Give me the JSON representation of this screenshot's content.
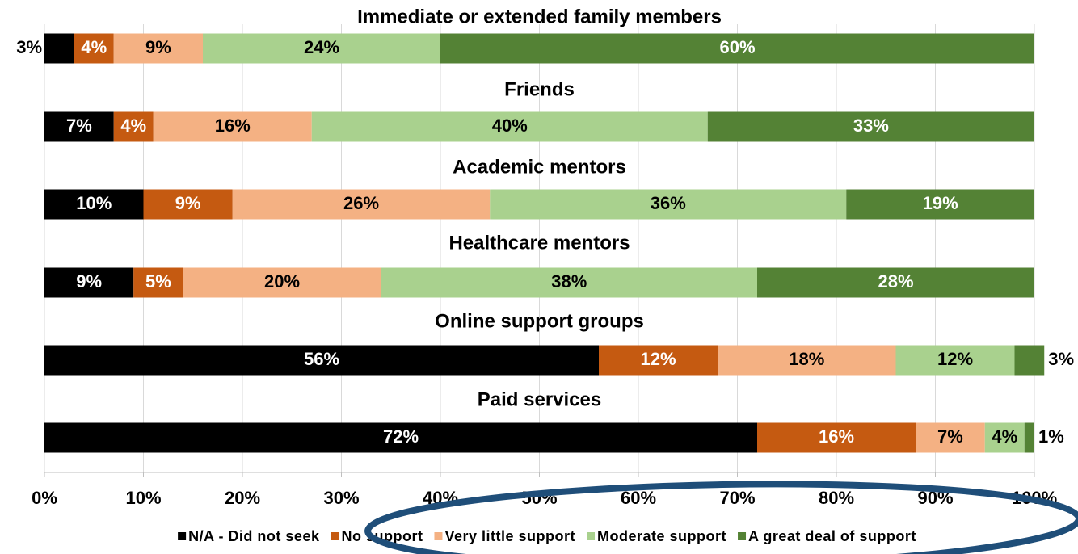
{
  "chart_data": {
    "type": "stacked-bar-horizontal",
    "categories": [
      "Immediate or extended family members",
      "Friends",
      "Academic mentors",
      "Healthcare mentors",
      "Online support groups",
      "Paid services"
    ],
    "series": [
      {
        "name": "N/A - Did not seek",
        "color": "#000000",
        "label_color": "#ffffff",
        "values": [
          3,
          7,
          10,
          9,
          56,
          72
        ],
        "value_labels": [
          "3%",
          "7%",
          "10%",
          "9%",
          "56%",
          "72%"
        ]
      },
      {
        "name": "No support",
        "color": "#c55a11",
        "label_color": "#ffffff",
        "values": [
          4,
          4,
          9,
          5,
          12,
          16
        ],
        "value_labels": [
          "4%",
          "4%",
          "9%",
          "5%",
          "12%",
          "16%"
        ]
      },
      {
        "name": "Very little support",
        "color": "#f4b183",
        "label_color": "#000000",
        "values": [
          9,
          16,
          26,
          20,
          18,
          7
        ],
        "value_labels": [
          "9%",
          "16%",
          "26%",
          "20%",
          "18%",
          "7%"
        ]
      },
      {
        "name": "Moderate support",
        "color": "#a9d18e",
        "label_color": "#000000",
        "values": [
          24,
          40,
          36,
          38,
          12,
          4
        ],
        "value_labels": [
          "24%",
          "40%",
          "36%",
          "38%",
          "12%",
          "4%"
        ]
      },
      {
        "name": "A great deal of support",
        "color": "#548235",
        "label_color": "#ffffff",
        "values": [
          60,
          33,
          19,
          28,
          3,
          1
        ],
        "value_labels": [
          "60%",
          "33%",
          "19%",
          "28%",
          "3%",
          "1%"
        ]
      }
    ],
    "xlim": [
      0,
      100
    ],
    "xticks": [
      {
        "value": 0,
        "label": "0%"
      },
      {
        "value": 10,
        "label": "10%"
      },
      {
        "value": 20,
        "label": "20%"
      },
      {
        "value": 30,
        "label": "30%"
      },
      {
        "value": 40,
        "label": "40%"
      },
      {
        "value": 50,
        "label": "50%"
      },
      {
        "value": 60,
        "label": "60%"
      },
      {
        "value": 70,
        "label": "70%"
      },
      {
        "value": 80,
        "label": "80%"
      },
      {
        "value": 90,
        "label": "90%"
      },
      {
        "value": 100,
        "label": "100%"
      }
    ],
    "grid": true,
    "legend": "bottom"
  }
}
